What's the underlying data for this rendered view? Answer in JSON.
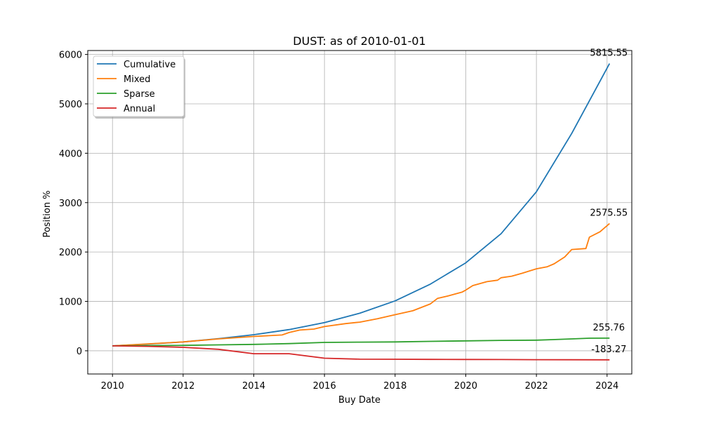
{
  "chart_data": {
    "type": "line",
    "title": "DUST: as of 2010-01-01",
    "xlabel": "Buy Date",
    "ylabel": "Position %",
    "xlim": [
      2009.3,
      2024.7
    ],
    "ylim": [
      -470,
      6080
    ],
    "xticks": [
      2010,
      2012,
      2014,
      2016,
      2018,
      2020,
      2022,
      2024
    ],
    "xtick_labels": [
      "2010",
      "2012",
      "2014",
      "2016",
      "2018",
      "2020",
      "2022",
      "2024"
    ],
    "yticks": [
      0,
      1000,
      2000,
      3000,
      4000,
      5000,
      6000
    ],
    "ytick_labels": [
      "0",
      "1000",
      "2000",
      "3000",
      "4000",
      "5000",
      "6000"
    ],
    "grid": true,
    "legend_position": "top-left",
    "series": [
      {
        "name": "Cumulative",
        "color": "#1f77b4",
        "end_label": "5815.55",
        "x": [
          2010,
          2011,
          2012,
          2013,
          2014,
          2015,
          2016,
          2017,
          2018,
          2019,
          2020,
          2021,
          2022,
          2023,
          2024.07
        ],
        "y": [
          100,
          135,
          180,
          245,
          325,
          430,
          570,
          760,
          1010,
          1350,
          1780,
          2370,
          3220,
          4400,
          5815.55
        ]
      },
      {
        "name": "Mixed",
        "color": "#ff7f0e",
        "end_label": "2575.55",
        "x": [
          2010,
          2011,
          2012,
          2013,
          2014,
          2014.8,
          2015,
          2015.3,
          2015.7,
          2016,
          2016.6,
          2017,
          2017.5,
          2018,
          2018.5,
          2019,
          2019.2,
          2019.5,
          2019.9,
          2020,
          2020.2,
          2020.6,
          2020.9,
          2021,
          2021.3,
          2021.6,
          2022,
          2022.3,
          2022.5,
          2022.8,
          2023,
          2023.4,
          2023.5,
          2023.8,
          2024.07
        ],
        "y": [
          100,
          140,
          180,
          240,
          290,
          320,
          370,
          420,
          440,
          490,
          550,
          580,
          650,
          730,
          810,
          950,
          1060,
          1110,
          1190,
          1230,
          1320,
          1400,
          1430,
          1480,
          1510,
          1570,
          1660,
          1700,
          1760,
          1900,
          2050,
          2070,
          2300,
          2410,
          2575.55
        ]
      },
      {
        "name": "Sparse",
        "color": "#2ca02c",
        "end_label": "255.76",
        "x": [
          2010,
          2011,
          2012,
          2013,
          2014,
          2015,
          2016,
          2017,
          2018,
          2019,
          2020,
          2021,
          2022,
          2022.4,
          2023,
          2023.5,
          2024.07
        ],
        "y": [
          100,
          105,
          110,
          120,
          130,
          145,
          170,
          175,
          180,
          190,
          200,
          210,
          215,
          225,
          240,
          255,
          255.76
        ]
      },
      {
        "name": "Annual",
        "color": "#d62728",
        "end_label": "-183.27",
        "x": [
          2010,
          2011,
          2012,
          2013,
          2014,
          2015,
          2016,
          2017,
          2018,
          2019,
          2020,
          2021,
          2022,
          2023,
          2024.07
        ],
        "y": [
          100,
          90,
          70,
          30,
          -60,
          -60,
          -150,
          -170,
          -172,
          -174,
          -176,
          -178,
          -180,
          -182,
          -183.27
        ]
      }
    ]
  }
}
